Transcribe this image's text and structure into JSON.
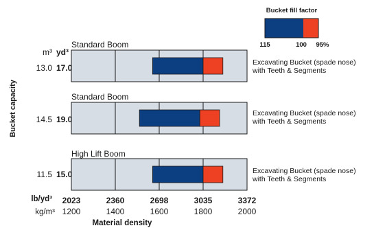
{
  "chart_data": {
    "type": "bar",
    "ylabel": "Bucket capacity",
    "xlabel": "Material density",
    "units": {
      "capacity_metric": "m³",
      "capacity_imperial": "yd³",
      "density_imperial": "lb/yd³",
      "density_metric": "kg/m³"
    },
    "x_ticks_imperial": [
      "2023",
      "2360",
      "2698",
      "3035",
      "3372"
    ],
    "x_ticks_metric": [
      "1200",
      "1400",
      "1600",
      "1800",
      "2000"
    ],
    "xlim": [
      1200,
      2000
    ],
    "gridlines": [
      1400,
      1600,
      1800
    ],
    "legend": {
      "title": "Bucket fill factor",
      "labels": [
        "115",
        "100",
        "95%"
      ],
      "colors": {
        "fill_115_to_100": "#0c3f82",
        "fill_100_to_95": "#ee4123"
      }
    },
    "panels": [
      {
        "boom": "Standard Boom",
        "capacity_m3": "13.0",
        "capacity_yd3": "17.0",
        "bucket": [
          "Excavating Bucket (spade nose)",
          "with Teeth & Segments"
        ],
        "range_115_to_100": [
          1570,
          1800
        ],
        "range_100_to_95": [
          1800,
          1890
        ]
      },
      {
        "boom": "Standard Boom",
        "capacity_m3": "14.5",
        "capacity_yd3": "19.0",
        "bucket": [
          "Excavating Bucket (spade nose)",
          "with Teeth & Segments"
        ],
        "range_115_to_100": [
          1510,
          1785
        ],
        "range_100_to_95": [
          1785,
          1875
        ]
      },
      {
        "boom": "High Lift Boom",
        "capacity_m3": "11.5",
        "capacity_yd3": "15.0",
        "bucket": [
          "Excavating Bucket (spade nose)",
          "with Teeth & Segments"
        ],
        "range_115_to_100": [
          1570,
          1800
        ],
        "range_100_to_95": [
          1800,
          1890
        ]
      }
    ]
  }
}
